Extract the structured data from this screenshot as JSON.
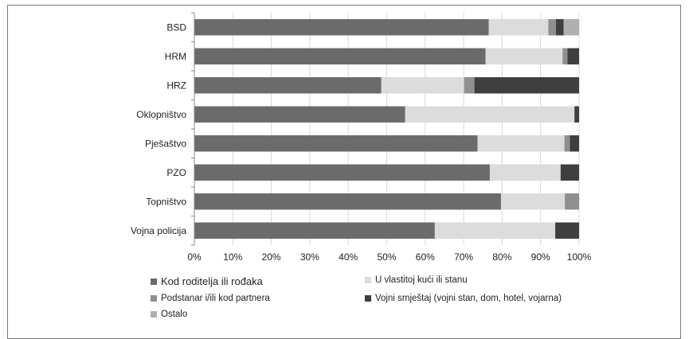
{
  "colors": {
    "kod_roditelja": "#6b6b6b",
    "vlastita_kuca": "#dcdcdc",
    "podstanar": "#8f8f8f",
    "vojni_smjestaj": "#3f3f3f",
    "ostalo": "#b0b0b0",
    "gridline": "#d9d9d9",
    "axis": "#8a8a8a"
  },
  "chart_data": {
    "type": "bar",
    "orientation": "horizontal",
    "stacked": true,
    "percent": true,
    "categories": [
      "BSD",
      "HRM",
      "HRZ",
      "Oklopništvo",
      "Pješaštvo",
      "PZO",
      "Topništvo",
      "Vojna policija"
    ],
    "series": [
      {
        "name": "Kod roditelja ili rođaka",
        "color_key": "kod_roditelja",
        "values": [
          76.5,
          75.7,
          48.6,
          54.8,
          73.6,
          76.8,
          79.7,
          62.5
        ]
      },
      {
        "name": "U vlastitoj kući ili stanu",
        "color_key": "vlastita_kuca",
        "values": [
          15.5,
          20.0,
          21.5,
          44.0,
          22.6,
          18.4,
          16.6,
          31.3
        ]
      },
      {
        "name": "Podstanar i/ili kod partnera",
        "color_key": "podstanar",
        "values": [
          2.0,
          1.3,
          2.7,
          0.0,
          1.4,
          0.0,
          3.7,
          0.0
        ]
      },
      {
        "name": "Vojni smještaj (vojni stan, dom, hotel, vojarna)",
        "color_key": "vojni_smjestaj",
        "values": [
          2.0,
          3.0,
          27.2,
          1.2,
          2.4,
          4.8,
          0.0,
          6.2
        ]
      },
      {
        "name": "Ostalo",
        "color_key": "ostalo",
        "values": [
          4.0,
          0.0,
          0.0,
          0.0,
          0.0,
          0.0,
          0.0,
          0.0
        ]
      }
    ],
    "x_ticks": [
      "0%",
      "10%",
      "20%",
      "30%",
      "40%",
      "50%",
      "60%",
      "70%",
      "80%",
      "90%",
      "100%"
    ],
    "xlim": [
      0,
      100
    ],
    "grid": true,
    "legend_position": "bottom"
  }
}
